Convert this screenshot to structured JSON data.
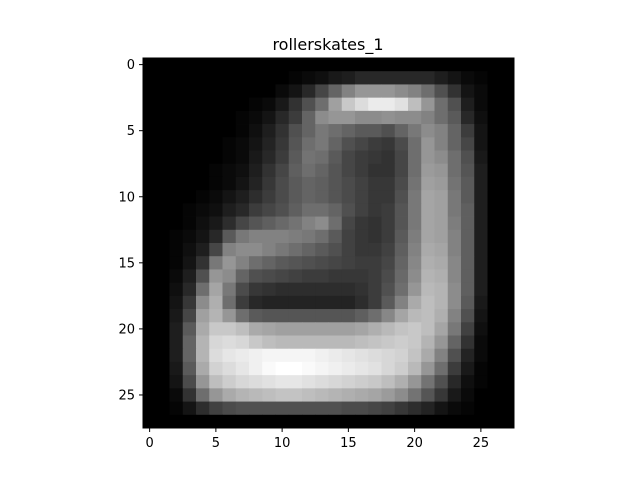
{
  "chart_data": {
    "type": "heatmap",
    "title": "rollerskates_1",
    "colormap": "gray",
    "xlim": [
      -0.5,
      27.5
    ],
    "ylim": [
      27.5,
      -0.5
    ],
    "xticks": [
      0,
      5,
      10,
      15,
      20,
      25
    ],
    "yticks": [
      0,
      5,
      10,
      15,
      20,
      25
    ],
    "grid": false,
    "value_range": [
      0,
      255
    ],
    "rows": 28,
    "cols": 28,
    "values": [
      [
        0,
        0,
        0,
        0,
        0,
        0,
        0,
        0,
        0,
        0,
        0,
        0,
        0,
        0,
        0,
        0,
        0,
        0,
        0,
        0,
        0,
        0,
        0,
        0,
        0,
        0,
        0,
        0
      ],
      [
        0,
        0,
        0,
        0,
        0,
        0,
        0,
        0,
        0,
        0,
        0,
        5,
        10,
        15,
        25,
        30,
        40,
        40,
        40,
        40,
        40,
        40,
        30,
        20,
        10,
        5,
        0,
        0
      ],
      [
        0,
        0,
        0,
        0,
        0,
        0,
        0,
        0,
        0,
        0,
        10,
        20,
        40,
        70,
        100,
        130,
        150,
        150,
        150,
        140,
        130,
        110,
        80,
        50,
        20,
        10,
        0,
        0
      ],
      [
        0,
        0,
        0,
        0,
        0,
        0,
        0,
        0,
        5,
        10,
        25,
        50,
        80,
        110,
        160,
        200,
        220,
        235,
        235,
        225,
        190,
        150,
        110,
        80,
        30,
        10,
        0,
        0
      ],
      [
        0,
        0,
        0,
        0,
        0,
        0,
        0,
        5,
        10,
        20,
        40,
        60,
        100,
        140,
        150,
        150,
        140,
        140,
        145,
        140,
        140,
        130,
        110,
        90,
        40,
        15,
        0,
        0
      ],
      [
        0,
        0,
        0,
        0,
        0,
        0,
        0,
        5,
        15,
        30,
        50,
        80,
        100,
        120,
        110,
        100,
        90,
        90,
        80,
        100,
        120,
        140,
        130,
        100,
        60,
        20,
        0,
        0
      ],
      [
        0,
        0,
        0,
        0,
        0,
        0,
        5,
        10,
        20,
        35,
        55,
        85,
        110,
        120,
        100,
        80,
        70,
        60,
        55,
        75,
        110,
        150,
        130,
        100,
        70,
        20,
        0,
        0
      ],
      [
        0,
        0,
        0,
        0,
        0,
        0,
        5,
        10,
        25,
        40,
        60,
        90,
        115,
        110,
        90,
        70,
        60,
        55,
        50,
        70,
        110,
        150,
        140,
        110,
        80,
        25,
        0,
        0
      ],
      [
        0,
        0,
        0,
        0,
        0,
        5,
        10,
        15,
        30,
        50,
        70,
        95,
        110,
        100,
        85,
        70,
        60,
        50,
        50,
        70,
        110,
        155,
        150,
        110,
        85,
        30,
        0,
        0
      ],
      [
        0,
        0,
        0,
        0,
        0,
        5,
        10,
        20,
        35,
        55,
        75,
        90,
        100,
        95,
        85,
        75,
        65,
        55,
        55,
        75,
        115,
        160,
        155,
        115,
        90,
        30,
        0,
        0
      ],
      [
        0,
        0,
        0,
        0,
        5,
        10,
        20,
        30,
        45,
        60,
        75,
        90,
        100,
        95,
        85,
        75,
        65,
        55,
        55,
        80,
        120,
        165,
        160,
        120,
        90,
        30,
        0,
        0
      ],
      [
        0,
        0,
        0,
        5,
        10,
        15,
        30,
        40,
        60,
        70,
        80,
        95,
        110,
        110,
        100,
        80,
        65,
        55,
        60,
        85,
        120,
        165,
        160,
        120,
        95,
        30,
        0,
        0
      ],
      [
        0,
        0,
        0,
        5,
        15,
        25,
        45,
        70,
        85,
        95,
        105,
        115,
        130,
        140,
        110,
        70,
        55,
        50,
        60,
        85,
        120,
        165,
        160,
        125,
        95,
        30,
        0,
        0
      ],
      [
        0,
        0,
        5,
        10,
        20,
        40,
        90,
        120,
        130,
        130,
        130,
        125,
        120,
        110,
        90,
        65,
        55,
        50,
        60,
        90,
        125,
        165,
        160,
        130,
        95,
        30,
        0,
        0
      ],
      [
        0,
        0,
        5,
        15,
        30,
        70,
        130,
        140,
        140,
        130,
        120,
        110,
        100,
        90,
        80,
        65,
        55,
        55,
        65,
        95,
        130,
        170,
        165,
        130,
        95,
        30,
        0,
        0
      ],
      [
        0,
        0,
        5,
        20,
        50,
        120,
        150,
        130,
        110,
        100,
        90,
        85,
        80,
        75,
        70,
        65,
        60,
        60,
        70,
        100,
        135,
        175,
        170,
        135,
        95,
        30,
        0,
        0
      ],
      [
        0,
        0,
        10,
        30,
        80,
        150,
        140,
        100,
        80,
        75,
        70,
        65,
        60,
        60,
        55,
        55,
        55,
        60,
        75,
        105,
        140,
        180,
        175,
        135,
        95,
        30,
        0,
        0
      ],
      [
        0,
        0,
        15,
        40,
        110,
        165,
        120,
        75,
        55,
        50,
        45,
        45,
        45,
        45,
        45,
        45,
        50,
        60,
        80,
        110,
        150,
        185,
        180,
        140,
        95,
        30,
        0,
        0
      ],
      [
        0,
        0,
        20,
        55,
        140,
        175,
        110,
        60,
        40,
        35,
        35,
        35,
        35,
        35,
        35,
        35,
        45,
        60,
        90,
        130,
        170,
        190,
        180,
        140,
        90,
        25,
        0,
        0
      ],
      [
        0,
        0,
        25,
        70,
        160,
        180,
        150,
        110,
        90,
        85,
        85,
        85,
        85,
        85,
        85,
        85,
        95,
        110,
        135,
        165,
        185,
        190,
        175,
        130,
        80,
        20,
        0,
        0
      ],
      [
        0,
        0,
        30,
        90,
        170,
        200,
        200,
        190,
        170,
        165,
        160,
        160,
        160,
        160,
        160,
        160,
        165,
        175,
        185,
        195,
        200,
        190,
        165,
        120,
        65,
        15,
        0,
        0
      ],
      [
        0,
        0,
        30,
        100,
        180,
        215,
        220,
        215,
        200,
        190,
        185,
        185,
        185,
        185,
        185,
        185,
        190,
        195,
        200,
        205,
        200,
        180,
        150,
        100,
        50,
        10,
        0,
        0
      ],
      [
        0,
        0,
        30,
        100,
        180,
        220,
        230,
        235,
        240,
        245,
        245,
        245,
        245,
        240,
        235,
        230,
        225,
        220,
        215,
        210,
        195,
        170,
        130,
        80,
        35,
        10,
        0,
        0
      ],
      [
        0,
        0,
        25,
        90,
        170,
        210,
        220,
        230,
        240,
        250,
        255,
        255,
        250,
        245,
        240,
        235,
        230,
        225,
        215,
        205,
        185,
        150,
        110,
        60,
        25,
        5,
        0,
        0
      ],
      [
        0,
        0,
        20,
        75,
        150,
        190,
        205,
        215,
        220,
        225,
        230,
        230,
        225,
        220,
        215,
        210,
        205,
        200,
        190,
        175,
        150,
        115,
        80,
        40,
        15,
        5,
        0,
        0
      ],
      [
        0,
        0,
        10,
        50,
        110,
        150,
        170,
        180,
        185,
        190,
        195,
        195,
        190,
        185,
        180,
        175,
        170,
        165,
        155,
        140,
        115,
        85,
        55,
        25,
        10,
        0,
        0,
        0
      ],
      [
        0,
        0,
        5,
        20,
        45,
        65,
        75,
        80,
        80,
        80,
        80,
        80,
        80,
        80,
        80,
        75,
        75,
        70,
        65,
        55,
        45,
        35,
        20,
        10,
        5,
        0,
        0,
        0
      ],
      [
        0,
        0,
        0,
        0,
        0,
        0,
        0,
        0,
        0,
        0,
        0,
        0,
        0,
        0,
        0,
        0,
        0,
        0,
        0,
        0,
        0,
        0,
        0,
        0,
        0,
        0,
        0,
        0
      ]
    ]
  }
}
